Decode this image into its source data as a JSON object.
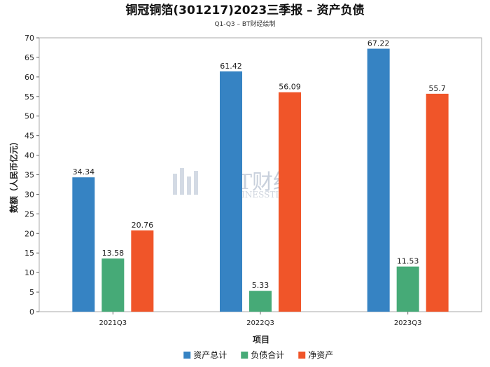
{
  "chart_data": {
    "type": "bar",
    "title": "铜冠铜箔(301217)2023三季报 – 资产负债",
    "subtitle": "Q1-Q3 – BT财经绘制",
    "xlabel": "项目",
    "ylabel": "数额（人民币亿元）",
    "ylim": [
      0,
      70
    ],
    "yticks": [
      0,
      5,
      10,
      15,
      20,
      25,
      30,
      35,
      40,
      45,
      50,
      55,
      60,
      65,
      70
    ],
    "grid": false,
    "legend_position": "bottom",
    "categories": [
      "2021Q3",
      "2022Q3",
      "2023Q3"
    ],
    "series": [
      {
        "name": "资产总计",
        "color": "#3683c3",
        "values": [
          34.34,
          61.42,
          67.22
        ]
      },
      {
        "name": "负债合计",
        "color": "#46aa77",
        "values": [
          13.58,
          5.33,
          11.53
        ]
      },
      {
        "name": "净资产",
        "color": "#f05529",
        "values": [
          20.76,
          56.09,
          55.7
        ]
      }
    ]
  },
  "watermark": {
    "main": "BT财经",
    "sub": "BUSINESSTIMES"
  }
}
